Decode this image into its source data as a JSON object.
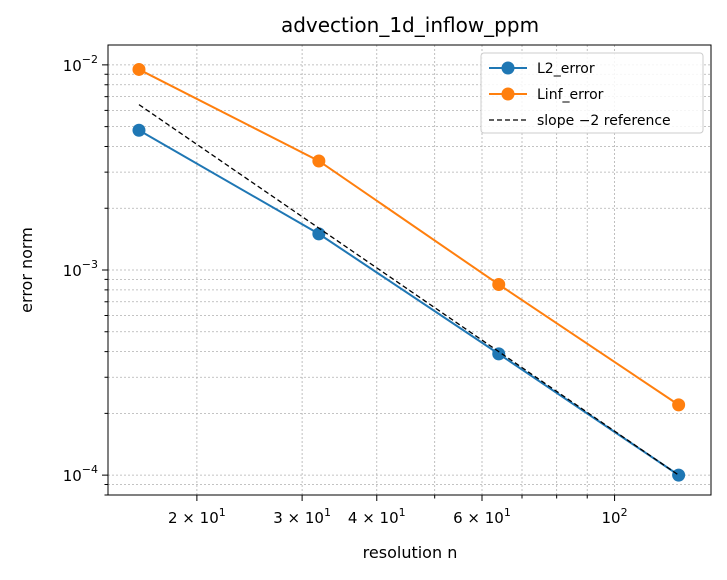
{
  "chart_data": {
    "type": "line",
    "title": "advection_1d_inflow_ppm",
    "xlabel": "resolution n",
    "ylabel": "error norm",
    "xscale": "log",
    "yscale": "log",
    "xlim": [
      14.2,
      145
    ],
    "ylim": [
      8e-05,
      0.0125
    ],
    "grid": true,
    "legend_position": "top-right",
    "x_ticks_major": [
      {
        "value": 20,
        "base": "2 × 10",
        "exp": "1"
      },
      {
        "value": 30,
        "base": "3 × 10",
        "exp": "1"
      },
      {
        "value": 40,
        "base": "4 × 10",
        "exp": "1"
      },
      {
        "value": 60,
        "base": "6 × 10",
        "exp": "1"
      },
      {
        "value": 100,
        "base": "10",
        "exp": "2"
      }
    ],
    "y_ticks_major": [
      {
        "value": 0.0001,
        "base": "10",
        "exp": "−4"
      },
      {
        "value": 0.001,
        "base": "10",
        "exp": "−3"
      },
      {
        "value": 0.01,
        "base": "10",
        "exp": "−2"
      }
    ],
    "x": [
      16,
      32,
      64,
      128
    ],
    "series": [
      {
        "name": "L2_error",
        "color": "#1f77b4",
        "style": "solid-marker",
        "values": [
          0.0048,
          0.0015,
          0.00039,
          0.0001
        ]
      },
      {
        "name": "Linf_error",
        "color": "#ff7f0e",
        "style": "solid-marker",
        "values": [
          0.0095,
          0.0034,
          0.00085,
          0.00022
        ]
      },
      {
        "name": "slope −2 reference",
        "color": "#000000",
        "style": "dashed",
        "values": [
          0.0064,
          0.0016,
          0.0004,
          0.0001
        ]
      }
    ]
  }
}
